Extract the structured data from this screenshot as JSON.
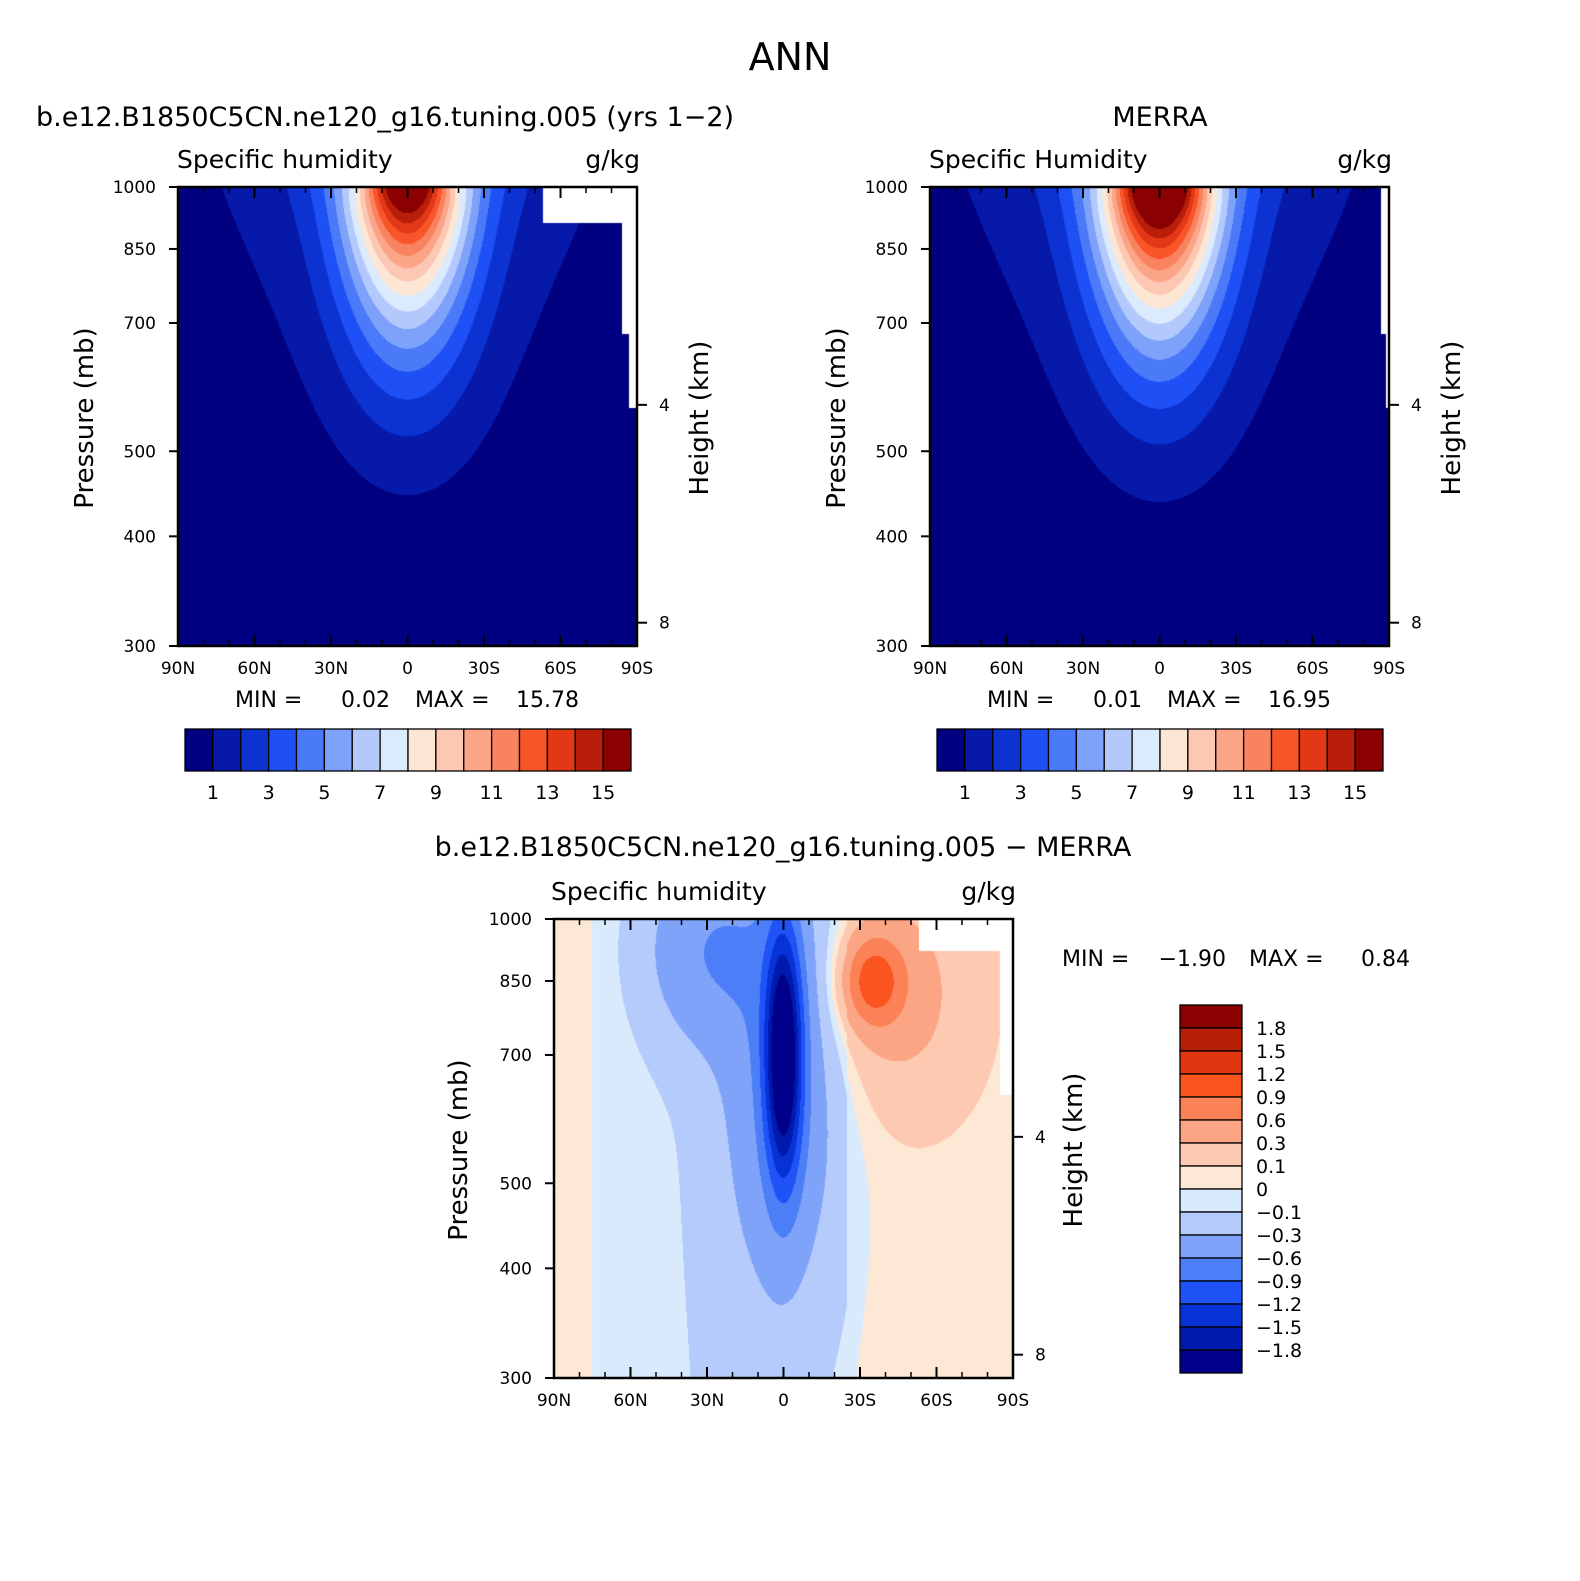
{
  "figure_title": "ANN",
  "colors": {
    "seq_palette": [
      "#000080",
      "#0619a9",
      "#0c33d2",
      "#1e50f5",
      "#4a7af7",
      "#7ea1f9",
      "#b3c9fc",
      "#dbebfd",
      "#fde6d4",
      "#fcc8b4",
      "#fba487",
      "#f9835f",
      "#f9542a",
      "#e23816",
      "#b81e0a",
      "#8b0000"
    ],
    "diff_palette": [
      "#00008b",
      "#001aad",
      "#0733d6",
      "#1f52f7",
      "#4c7ef8",
      "#7fa3f9",
      "#b5cbfc",
      "#d9eafd",
      "#fde8d6",
      "#fdc9b1",
      "#fca585",
      "#fb8157",
      "#fa541f",
      "#e03610",
      "#b61e06",
      "#8b0000"
    ]
  },
  "panels": [
    {
      "id": "model",
      "case_title": "b.e12.B1850C5CN.ne120_g16.tuning.005 (yrs 1−2)",
      "left_label": "Specific humidity",
      "right_label": "g/kg",
      "ylabel": "Pressure (mb)",
      "ylabel_right": "Height (km)",
      "min_label": "MIN =",
      "min_value": "0.02",
      "max_label": "MAX =",
      "max_value": "15.78",
      "colorbar_labels": [
        "1",
        "3",
        "5",
        "7",
        "9",
        "11",
        "13",
        "15"
      ]
    },
    {
      "id": "obs",
      "case_title": "MERRA",
      "left_label": "Specific Humidity",
      "right_label": "g/kg",
      "ylabel": "Pressure (mb)",
      "ylabel_right": "Height (km)",
      "min_label": "MIN =",
      "min_value": "0.01",
      "max_label": "MAX =",
      "max_value": "16.95",
      "colorbar_labels": [
        "1",
        "3",
        "5",
        "7",
        "9",
        "11",
        "13",
        "15"
      ]
    },
    {
      "id": "diff",
      "case_title": "b.e12.B1850C5CN.ne120_g16.tuning.005 − MERRA",
      "left_label": "Specific humidity",
      "right_label": "g/kg",
      "ylabel": "Pressure (mb)",
      "ylabel_right": "Height (km)",
      "min_label": "MIN =",
      "min_value": "−1.90",
      "max_label": "MAX =",
      "max_value": "0.84",
      "colorbar_labels": [
        "1.8",
        "1.5",
        "1.2",
        "0.9",
        "0.6",
        "0.3",
        "0.1",
        "0",
        "−0.1",
        "−0.3",
        "−0.6",
        "−0.9",
        "−1.2",
        "−1.5",
        "−1.8"
      ]
    }
  ],
  "chart_data": [
    {
      "type": "heatmap",
      "title": "b.e12.B1850C5CN.ne120_g16.tuning.005 (yrs 1−2)",
      "x_tick_labels": [
        "90N",
        "60N",
        "30N",
        "0",
        "30S",
        "60S",
        "90S"
      ],
      "x_ticks_deg": [
        90,
        60,
        30,
        0,
        -30,
        -60,
        -90
      ],
      "xlim": [
        90,
        -90
      ],
      "y_tick_labels": [
        "300",
        "400",
        "500",
        "700",
        "850",
        "1000"
      ],
      "y_ticks": [
        300,
        400,
        500,
        700,
        850,
        1000
      ],
      "ylim": [
        1000,
        300
      ],
      "y_scale": "log",
      "y_right_ticks": [
        "4",
        "8"
      ],
      "y_right_ticks_km": [
        4,
        8
      ],
      "contour_levels": [
        1,
        2,
        3,
        4,
        5,
        6,
        7,
        8,
        9,
        10,
        11,
        12,
        13,
        14,
        15
      ],
      "profile": {
        "peak_lat": 0,
        "peak_value_g_per_kg": 15.78,
        "peak_pressure_mb": 1000,
        "moist_top_mb": 400
      },
      "min": 0.02,
      "max": 15.78,
      "missing_region": "below surface near 60S-90S"
    },
    {
      "type": "heatmap",
      "title": "MERRA",
      "x_tick_labels": [
        "90N",
        "60N",
        "30N",
        "0",
        "30S",
        "60S",
        "90S"
      ],
      "x_ticks_deg": [
        90,
        60,
        30,
        0,
        -30,
        -60,
        -90
      ],
      "xlim": [
        90,
        -90
      ],
      "y_tick_labels": [
        "300",
        "400",
        "500",
        "700",
        "850",
        "1000"
      ],
      "y_ticks": [
        300,
        400,
        500,
        700,
        850,
        1000
      ],
      "ylim": [
        1000,
        300
      ],
      "y_scale": "log",
      "y_right_ticks": [
        "4",
        "8"
      ],
      "y_right_ticks_km": [
        4,
        8
      ],
      "contour_levels": [
        1,
        2,
        3,
        4,
        5,
        6,
        7,
        8,
        9,
        10,
        11,
        12,
        13,
        14,
        15
      ],
      "profile": {
        "peak_lat": 0,
        "peak_value_g_per_kg": 16.95,
        "peak_pressure_mb": 1000,
        "moist_top_mb": 380
      },
      "min": 0.01,
      "max": 16.95,
      "missing_region": "below surface near 90S"
    },
    {
      "type": "heatmap",
      "title": "b.e12.B1850C5CN.ne120_g16.tuning.005 − MERRA",
      "x_tick_labels": [
        "90N",
        "60N",
        "30N",
        "0",
        "30S",
        "60S",
        "90S"
      ],
      "x_ticks_deg": [
        90,
        60,
        30,
        0,
        -30,
        -60,
        -90
      ],
      "xlim": [
        90,
        -90
      ],
      "y_tick_labels": [
        "300",
        "400",
        "500",
        "700",
        "850",
        "1000"
      ],
      "y_ticks": [
        300,
        400,
        500,
        700,
        850,
        1000
      ],
      "ylim": [
        1000,
        300
      ],
      "y_scale": "log",
      "y_right_ticks": [
        "4",
        "8"
      ],
      "y_right_ticks_km": [
        4,
        8
      ],
      "contour_levels": [
        -1.8,
        -1.5,
        -1.2,
        -0.9,
        -0.6,
        -0.3,
        -0.1,
        0,
        0.1,
        0.3,
        0.6,
        0.9,
        1.2,
        1.5,
        1.8
      ],
      "features": [
        {
          "kind": "dry_core",
          "lat": 0,
          "pressure_mb": 700,
          "value": -1.9
        },
        {
          "kind": "moist_lobe",
          "lat": -35,
          "pressure_mb": 850,
          "value": 0.84
        }
      ],
      "min": -1.9,
      "max": 0.84,
      "missing_region": "below surface near 50S-90S"
    }
  ]
}
